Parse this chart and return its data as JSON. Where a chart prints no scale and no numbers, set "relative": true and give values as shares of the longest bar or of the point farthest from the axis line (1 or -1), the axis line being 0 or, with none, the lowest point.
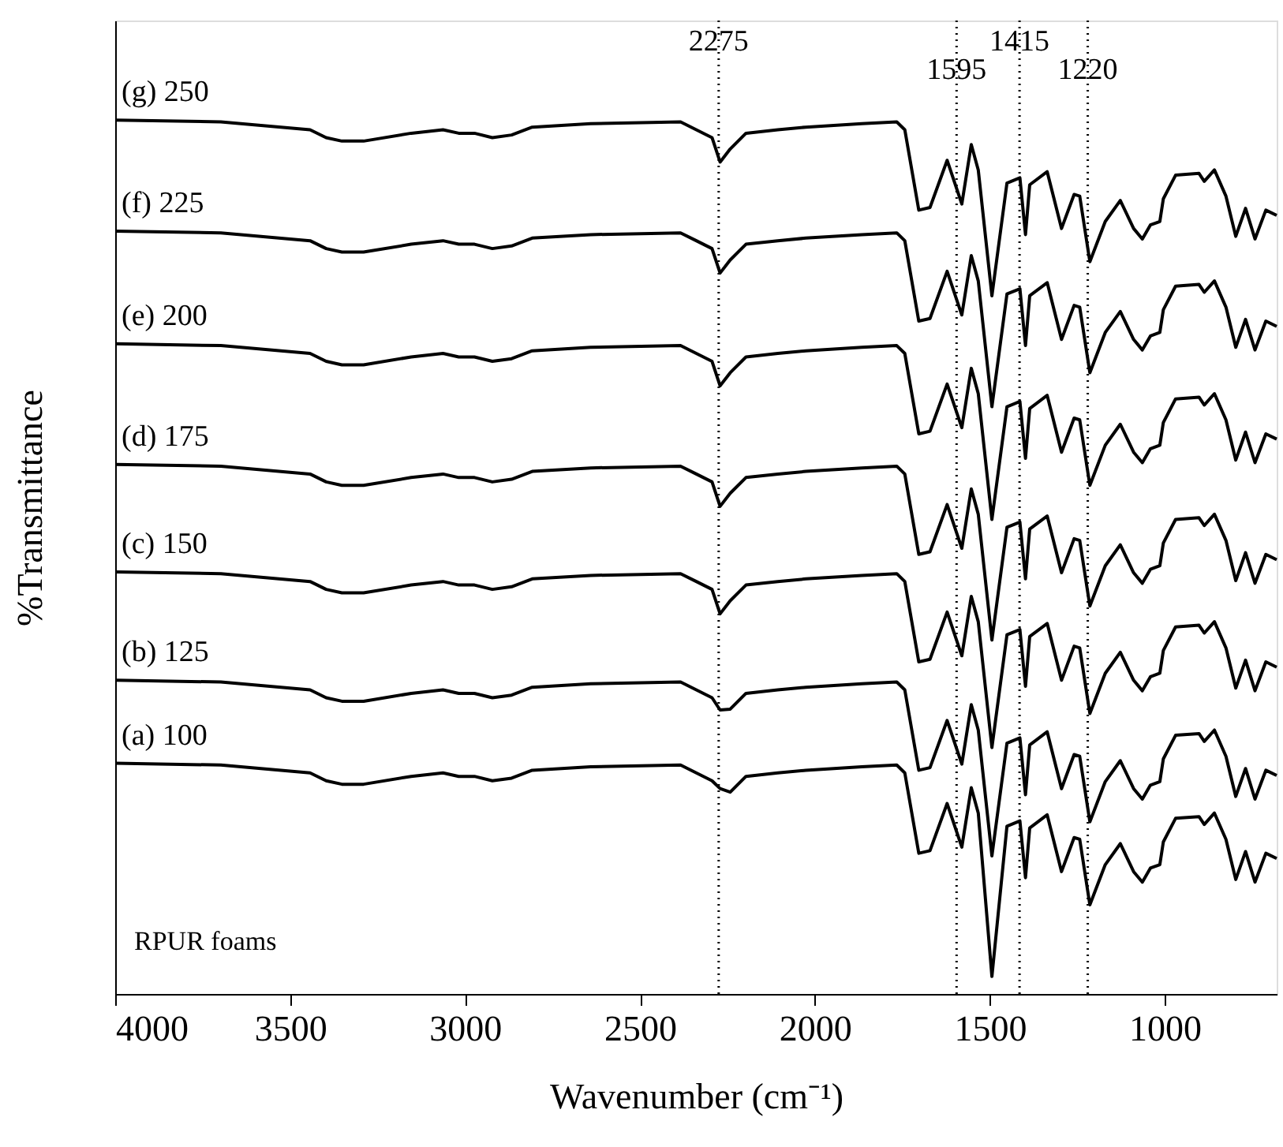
{
  "chart_data": {
    "type": "line",
    "relative": true,
    "xlabel": "Wavenumber (cm⁻¹)",
    "ylabel": "%Transmittance",
    "xlim": [
      4000,
      680
    ],
    "xticks": [
      4000,
      3500,
      3000,
      2500,
      2000,
      1500,
      1000
    ],
    "grid": false,
    "marker": "none",
    "line_style": "solid",
    "x": [
      4000,
      3698,
      3443,
      3397,
      3352,
      3290,
      3154,
      3063,
      3018,
      2973,
      2922,
      2867,
      2808,
      2641,
      2384,
      2339,
      2294,
      2271,
      2242,
      2197,
      2106,
      2026,
      1866,
      1766,
      1743,
      1703,
      1671,
      1622,
      1580,
      1553,
      1533,
      1494,
      1451,
      1414,
      1398,
      1386,
      1336,
      1295,
      1259,
      1243,
      1214,
      1170,
      1127,
      1089,
      1064,
      1041,
      1014,
      1004,
      969,
      902,
      887,
      858,
      825,
      797,
      769,
      742,
      711,
      680
    ],
    "series": [
      {
        "name": "(g) 250",
        "color": "#000000",
        "values": [
          1.0,
          0.998,
          0.989,
          0.98,
          0.976,
          0.976,
          0.985,
          0.989,
          0.985,
          0.985,
          0.98,
          0.983,
          0.992,
          0.996,
          0.998,
          0.989,
          0.98,
          0.952,
          0.967,
          0.985,
          0.989,
          0.992,
          0.996,
          0.998,
          0.989,
          0.897,
          0.9,
          0.954,
          0.904,
          0.972,
          0.943,
          0.799,
          0.928,
          0.934,
          0.869,
          0.926,
          0.941,
          0.876,
          0.915,
          0.913,
          0.838,
          0.884,
          0.908,
          0.876,
          0.864,
          0.88,
          0.884,
          0.91,
          0.937,
          0.939,
          0.93,
          0.943,
          0.913,
          0.867,
          0.899,
          0.864,
          0.897,
          0.891
        ]
      },
      {
        "name": "(f) 225",
        "color": "#000000",
        "values": [
          0.873,
          0.871,
          0.862,
          0.853,
          0.849,
          0.849,
          0.858,
          0.862,
          0.858,
          0.858,
          0.853,
          0.856,
          0.865,
          0.869,
          0.871,
          0.862,
          0.853,
          0.825,
          0.84,
          0.858,
          0.862,
          0.865,
          0.869,
          0.871,
          0.862,
          0.77,
          0.773,
          0.827,
          0.777,
          0.845,
          0.816,
          0.672,
          0.801,
          0.807,
          0.742,
          0.799,
          0.814,
          0.749,
          0.788,
          0.786,
          0.711,
          0.757,
          0.781,
          0.749,
          0.737,
          0.753,
          0.757,
          0.783,
          0.81,
          0.812,
          0.803,
          0.816,
          0.786,
          0.74,
          0.772,
          0.737,
          0.77,
          0.764
        ]
      },
      {
        "name": "(e) 200",
        "color": "#000000",
        "values": [
          0.744,
          0.742,
          0.733,
          0.724,
          0.72,
          0.72,
          0.729,
          0.733,
          0.729,
          0.729,
          0.724,
          0.727,
          0.736,
          0.74,
          0.742,
          0.733,
          0.724,
          0.696,
          0.711,
          0.729,
          0.733,
          0.736,
          0.74,
          0.742,
          0.733,
          0.641,
          0.644,
          0.698,
          0.648,
          0.716,
          0.687,
          0.543,
          0.672,
          0.678,
          0.613,
          0.67,
          0.685,
          0.62,
          0.659,
          0.657,
          0.582,
          0.628,
          0.652,
          0.62,
          0.608,
          0.624,
          0.628,
          0.654,
          0.681,
          0.683,
          0.674,
          0.687,
          0.657,
          0.611,
          0.643,
          0.608,
          0.641,
          0.635
        ]
      },
      {
        "name": "(d) 175",
        "color": "#000000",
        "values": [
          0.606,
          0.604,
          0.595,
          0.586,
          0.582,
          0.582,
          0.591,
          0.595,
          0.591,
          0.591,
          0.586,
          0.589,
          0.598,
          0.602,
          0.604,
          0.595,
          0.586,
          0.558,
          0.573,
          0.591,
          0.595,
          0.598,
          0.602,
          0.604,
          0.595,
          0.503,
          0.506,
          0.56,
          0.51,
          0.578,
          0.549,
          0.405,
          0.534,
          0.54,
          0.475,
          0.532,
          0.547,
          0.482,
          0.521,
          0.519,
          0.444,
          0.49,
          0.514,
          0.482,
          0.47,
          0.486,
          0.49,
          0.516,
          0.543,
          0.545,
          0.536,
          0.549,
          0.519,
          0.473,
          0.505,
          0.47,
          0.503,
          0.497
        ]
      },
      {
        "name": "(c) 150",
        "color": "#000000",
        "values": [
          0.483,
          0.481,
          0.472,
          0.463,
          0.459,
          0.459,
          0.468,
          0.472,
          0.468,
          0.468,
          0.463,
          0.466,
          0.475,
          0.479,
          0.481,
          0.472,
          0.463,
          0.435,
          0.45,
          0.468,
          0.472,
          0.475,
          0.479,
          0.481,
          0.472,
          0.38,
          0.383,
          0.437,
          0.387,
          0.455,
          0.426,
          0.282,
          0.411,
          0.417,
          0.352,
          0.409,
          0.424,
          0.359,
          0.398,
          0.396,
          0.321,
          0.367,
          0.391,
          0.359,
          0.347,
          0.363,
          0.367,
          0.393,
          0.42,
          0.422,
          0.413,
          0.426,
          0.396,
          0.35,
          0.382,
          0.347,
          0.38,
          0.374
        ]
      },
      {
        "name": "(b) 125",
        "color": "#000000",
        "values": [
          0.359,
          0.357,
          0.348,
          0.339,
          0.335,
          0.335,
          0.344,
          0.348,
          0.344,
          0.344,
          0.339,
          0.342,
          0.351,
          0.355,
          0.357,
          0.348,
          0.339,
          0.325,
          0.326,
          0.344,
          0.348,
          0.351,
          0.355,
          0.357,
          0.348,
          0.256,
          0.259,
          0.313,
          0.263,
          0.331,
          0.302,
          0.158,
          0.287,
          0.293,
          0.228,
          0.285,
          0.3,
          0.235,
          0.274,
          0.272,
          0.197,
          0.243,
          0.267,
          0.235,
          0.223,
          0.239,
          0.243,
          0.269,
          0.296,
          0.298,
          0.289,
          0.302,
          0.272,
          0.226,
          0.258,
          0.223,
          0.256,
          0.25
        ]
      },
      {
        "name": "(a) 100",
        "color": "#000000",
        "values": [
          0.264,
          0.262,
          0.253,
          0.244,
          0.24,
          0.24,
          0.249,
          0.253,
          0.249,
          0.249,
          0.244,
          0.247,
          0.256,
          0.26,
          0.262,
          0.253,
          0.244,
          0.235,
          0.231,
          0.249,
          0.253,
          0.256,
          0.26,
          0.262,
          0.253,
          0.161,
          0.164,
          0.218,
          0.168,
          0.236,
          0.207,
          0.02,
          0.192,
          0.198,
          0.133,
          0.19,
          0.205,
          0.14,
          0.179,
          0.177,
          0.102,
          0.148,
          0.172,
          0.14,
          0.128,
          0.144,
          0.148,
          0.174,
          0.201,
          0.203,
          0.194,
          0.207,
          0.177,
          0.131,
          0.163,
          0.128,
          0.161,
          0.155
        ]
      }
    ],
    "ref_lines": [
      {
        "axis": "x",
        "value": 2275,
        "label": "2275",
        "line_style": "dotted"
      },
      {
        "axis": "x",
        "value": 1595,
        "label": "1595",
        "line_style": "dotted"
      },
      {
        "axis": "x",
        "value": 1415,
        "label": "1415",
        "line_style": "dotted"
      },
      {
        "axis": "x",
        "value": 1220,
        "label": "1220",
        "line_style": "dotted"
      }
    ],
    "annotations": [
      "RPUR foams"
    ]
  }
}
